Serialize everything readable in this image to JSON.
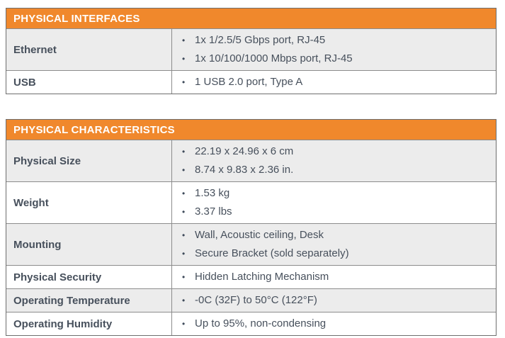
{
  "colors": {
    "header_bg": "#F0882C",
    "header_text": "#FFFFFF",
    "row_alt_bg": "#ECECEC",
    "row_bg": "#FFFFFF",
    "border": "#8C8C8C",
    "border_dark": "#6E6E6E",
    "text": "#47505C",
    "bullet": "#3E4A5A",
    "page_bg": "#FFFFFF"
  },
  "bullet_char": "•",
  "tables": [
    {
      "title": "PHYSICAL INTERFACES",
      "rows": [
        {
          "label": "Ethernet",
          "items": [
            "1x 1/2.5/5 Gbps port, RJ-45",
            "1x 10/100/1000 Mbps port, RJ-45"
          ]
        },
        {
          "label": "USB",
          "items": [
            "1 USB 2.0 port, Type A"
          ]
        }
      ]
    },
    {
      "title": "PHYSICAL CHARACTERISTICS",
      "rows": [
        {
          "label": "Physical Size",
          "items": [
            "22.19 x 24.96 x 6 cm",
            "8.74 x 9.83 x 2.36 in."
          ]
        },
        {
          "label": "Weight",
          "items": [
            "1.53 kg",
            "3.37 lbs"
          ]
        },
        {
          "label": "Mounting",
          "items": [
            "Wall, Acoustic ceiling, Desk",
            "Secure Bracket (sold separately)"
          ]
        },
        {
          "label": "Physical Security",
          "items": [
            "Hidden Latching Mechanism"
          ]
        },
        {
          "label": "Operating Temperature",
          "items": [
            "-0C (32F) to 50°C (122°F)"
          ]
        },
        {
          "label": "Operating Humidity",
          "items": [
            "Up to 95%, non-condensing"
          ]
        }
      ]
    }
  ]
}
